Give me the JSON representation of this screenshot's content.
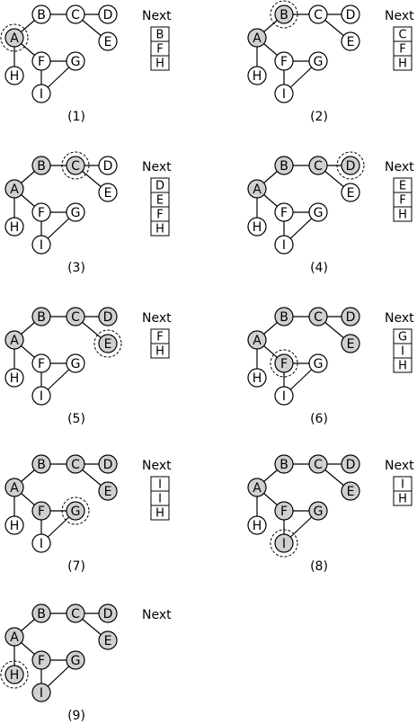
{
  "graph": {
    "nodes": [
      "A",
      "B",
      "C",
      "D",
      "E",
      "F",
      "G",
      "H",
      "I"
    ],
    "edges": [
      [
        "A",
        "B"
      ],
      [
        "B",
        "C"
      ],
      [
        "C",
        "D"
      ],
      [
        "C",
        "E"
      ],
      [
        "A",
        "F"
      ],
      [
        "A",
        "H"
      ],
      [
        "F",
        "G"
      ],
      [
        "F",
        "I"
      ],
      [
        "I",
        "G"
      ]
    ]
  },
  "queue_header": "Next",
  "colors": {
    "visited": "#d0d0d0",
    "unvisited": "#ffffff",
    "stroke": "#000000"
  },
  "steps": [
    {
      "label": "(1)",
      "current": "A",
      "visited": [
        "A"
      ],
      "next": [
        "B",
        "F",
        "H"
      ]
    },
    {
      "label": "(2)",
      "current": "B",
      "visited": [
        "A",
        "B"
      ],
      "next": [
        "C",
        "F",
        "H"
      ]
    },
    {
      "label": "(3)",
      "current": "C",
      "visited": [
        "A",
        "B",
        "C"
      ],
      "next": [
        "D",
        "E",
        "F",
        "H"
      ]
    },
    {
      "label": "(4)",
      "current": "D",
      "visited": [
        "A",
        "B",
        "C",
        "D"
      ],
      "next": [
        "E",
        "F",
        "H"
      ]
    },
    {
      "label": "(5)",
      "current": "E",
      "visited": [
        "A",
        "B",
        "C",
        "D",
        "E"
      ],
      "next": [
        "F",
        "H"
      ]
    },
    {
      "label": "(6)",
      "current": "F",
      "visited": [
        "A",
        "B",
        "C",
        "D",
        "E",
        "F"
      ],
      "next": [
        "G",
        "I",
        "H"
      ]
    },
    {
      "label": "(7)",
      "current": "G",
      "visited": [
        "A",
        "B",
        "C",
        "D",
        "E",
        "F",
        "G"
      ],
      "next": [
        "I",
        "I",
        "H"
      ]
    },
    {
      "label": "(8)",
      "current": "I",
      "visited": [
        "A",
        "B",
        "C",
        "D",
        "E",
        "F",
        "G",
        "I"
      ],
      "next": [
        "I",
        "H"
      ]
    },
    {
      "label": "(9)",
      "current": "H",
      "visited": [
        "A",
        "B",
        "C",
        "D",
        "E",
        "F",
        "G",
        "H",
        "I"
      ],
      "next": []
    }
  ]
}
